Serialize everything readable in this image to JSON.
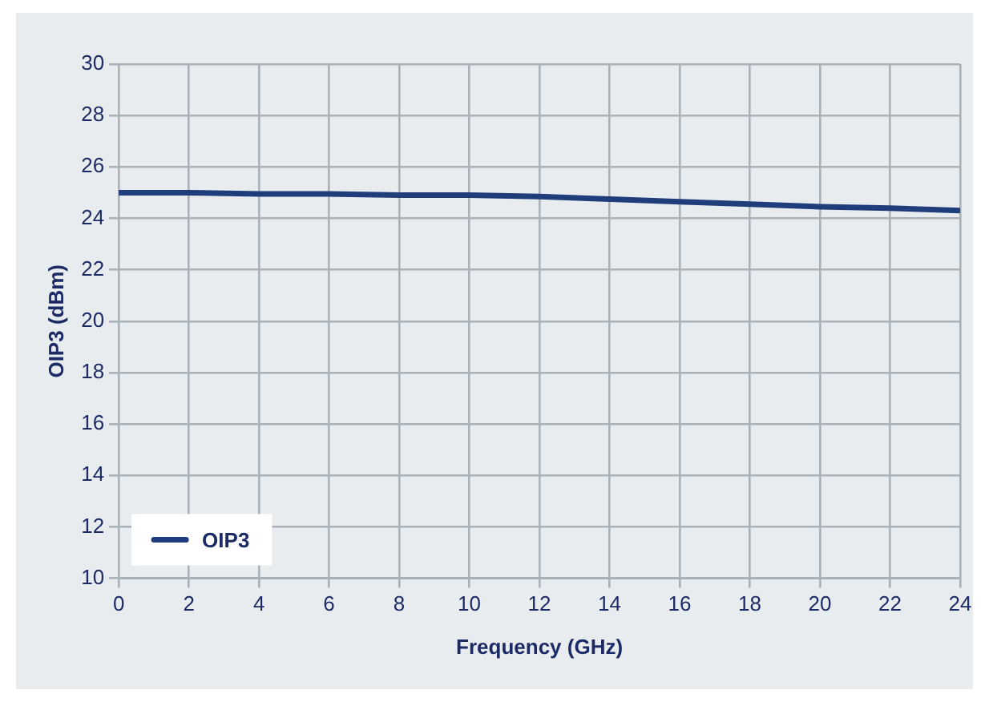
{
  "chart_data": {
    "type": "line",
    "xlabel": "Frequency (GHz)",
    "ylabel": "OIP3 (dBm)",
    "x": [
      0,
      2,
      4,
      6,
      8,
      10,
      12,
      14,
      16,
      18,
      20,
      22,
      24
    ],
    "series": [
      {
        "name": "OIP3",
        "color": "#1f3d7a",
        "values": [
          25,
          25,
          24.95,
          24.95,
          24.9,
          24.9,
          24.85,
          24.75,
          24.65,
          24.55,
          24.45,
          24.4,
          24.3
        ]
      }
    ],
    "xlim": [
      0,
      24
    ],
    "xticks": [
      0,
      2,
      4,
      6,
      8,
      10,
      12,
      14,
      16,
      18,
      20,
      22,
      24
    ],
    "ylim": [
      10,
      30
    ],
    "yticks": [
      10,
      12,
      14,
      16,
      18,
      20,
      22,
      24,
      26,
      28,
      30
    ],
    "grid": true,
    "legend": "bottom left",
    "marker": "none",
    "line_style": "solid"
  }
}
